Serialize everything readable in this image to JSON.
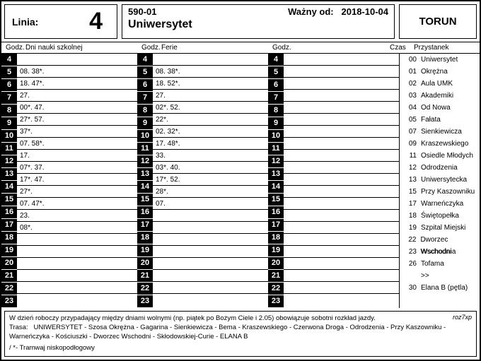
{
  "header": {
    "line_label": "Linia:",
    "line_number": "4",
    "code": "590-01",
    "valid_label": "Ważny od:",
    "valid_date": "2018-10-04",
    "destination": "Uniwersytet",
    "city": "TORUN"
  },
  "col_headers": {
    "godz": "Godz.",
    "school": "Dni nauki szkolnej",
    "ferie": "Ferie",
    "blank": "",
    "czas": "Czas",
    "stop": "Przystanek"
  },
  "hours": [
    "4",
    "5",
    "6",
    "7",
    "8",
    "9",
    "10",
    "11",
    "12",
    "13",
    "14",
    "15",
    "16",
    "17",
    "18",
    "19",
    "20",
    "21",
    "22",
    "23"
  ],
  "school_minutes": [
    "",
    "08. 38*.",
    "18. 47*.",
    "27.",
    "00*. 47.",
    "27*. 57.",
    "37*.",
    "07. 58*.",
    "17.",
    "07*. 37.",
    "17*. 47.",
    "27*.",
    "07. 47*.",
    "23.",
    "08*.",
    "",
    "",
    "",
    "",
    ""
  ],
  "ferie_minutes": [
    "",
    "08. 38*.",
    "18. 52*.",
    "27.",
    "02*. 52.",
    "22*.",
    "02. 32*.",
    "17. 48*.",
    "33.",
    "03*. 40.",
    "17*. 52.",
    "28*.",
    "07.",
    "",
    "",
    "",
    "",
    "",
    "",
    ""
  ],
  "col3_minutes": [
    "",
    "",
    "",
    "",
    "",
    "",
    "",
    "",
    "",
    "",
    "",
    "",
    "",
    "",
    "",
    "",
    "",
    "",
    "",
    ""
  ],
  "stops": [
    {
      "t": "00",
      "n": "Uniwersytet"
    },
    {
      "t": "01",
      "n": "Okrężna"
    },
    {
      "t": "02",
      "n": "Aula UMK"
    },
    {
      "t": "03",
      "n": "Akademiki"
    },
    {
      "t": "04",
      "n": "Od Nowa"
    },
    {
      "t": "05",
      "n": "Fałata"
    },
    {
      "t": "07",
      "n": "Sienkiewicza"
    },
    {
      "t": "09",
      "n": "Kraszewskiego"
    },
    {
      "t": "11",
      "n": "Osiedle Młodych"
    },
    {
      "t": "12",
      "n": "Odrodzenia"
    },
    {
      "t": "13",
      "n": "Uniwersytecka"
    },
    {
      "t": "15",
      "n": "Przy Kaszowniku"
    },
    {
      "t": "17",
      "n": "Warneńczyka"
    },
    {
      "t": "18",
      "n": "Świętopełka"
    },
    {
      "t": "19",
      "n": "Szpital Miejski"
    },
    {
      "t": "22",
      "n": "Dworzec Wschodni"
    },
    {
      "t": "23",
      "n": "Wschodnia"
    },
    {
      "t": "26",
      "n": "Tofama"
    },
    {
      "t": "",
      "n": ">>"
    },
    {
      "t": "30",
      "n": "Elana B (pętla)"
    }
  ],
  "footer": {
    "note": "W dzień roboczy przypadający między dniami wolnymi (np. piątek po Bożym Ciele i 2.05) obowiązuje sobotni rozkład jazdy.",
    "route_label": "Trasa:",
    "route": "UNIWERSYTET - Szosa Okrężna - Gagarina - Sienkiewicza - Bema - Kraszewskiego - Czerwona Droga - Odrodzenia - Przy Kaszowniku - Warneńczyka - Kościuszki - Dworzec Wschodni - Skłodowskiej-Curie - ELANA B",
    "legend": "/ *- Tramwaj niskopodłogowy",
    "sig": "roz7xp"
  },
  "layout": {
    "col1_min_w": 170,
    "col2_min_w": 163,
    "col3_min_w": 163
  }
}
